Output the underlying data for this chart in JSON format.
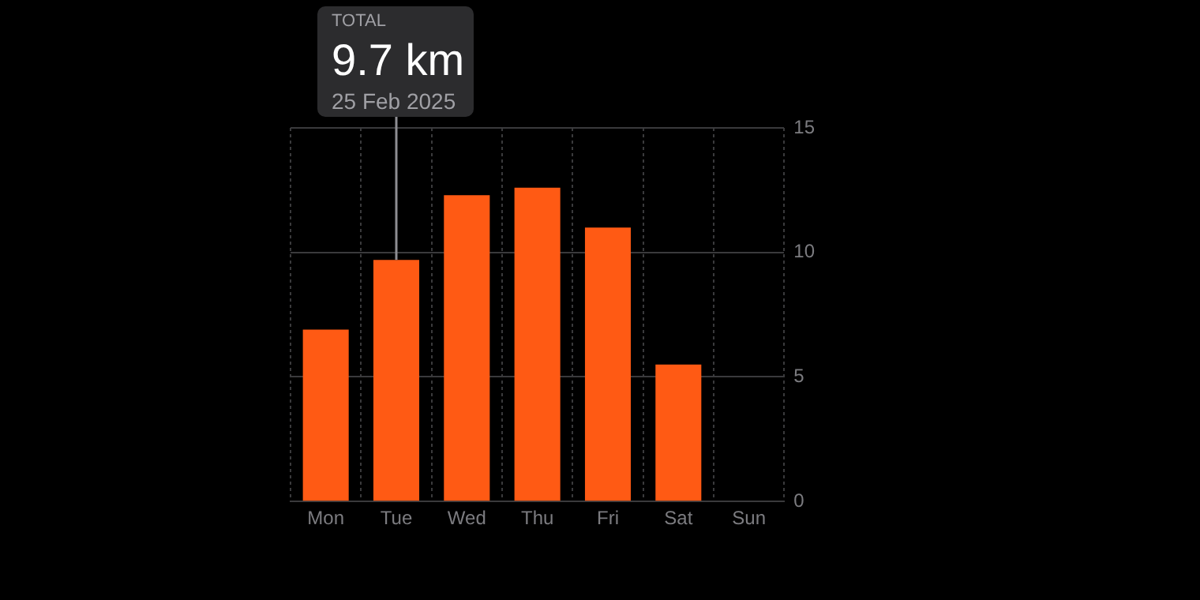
{
  "chart_data": {
    "type": "bar",
    "categories": [
      "Mon",
      "Tue",
      "Wed",
      "Thu",
      "Fri",
      "Sat",
      "Sun"
    ],
    "values": [
      6.9,
      9.7,
      12.3,
      12.6,
      11.0,
      5.5,
      null
    ],
    "color": "#ff5a14",
    "ylim": [
      0,
      15
    ],
    "yticks": [
      0,
      5,
      10,
      15
    ],
    "grid": true,
    "legend": false,
    "annotations": [
      "TOTAL",
      {
        "text": "9.7 km",
        "x": "Tue",
        "y": 9.7
      },
      "25 Feb 2025"
    ]
  }
}
